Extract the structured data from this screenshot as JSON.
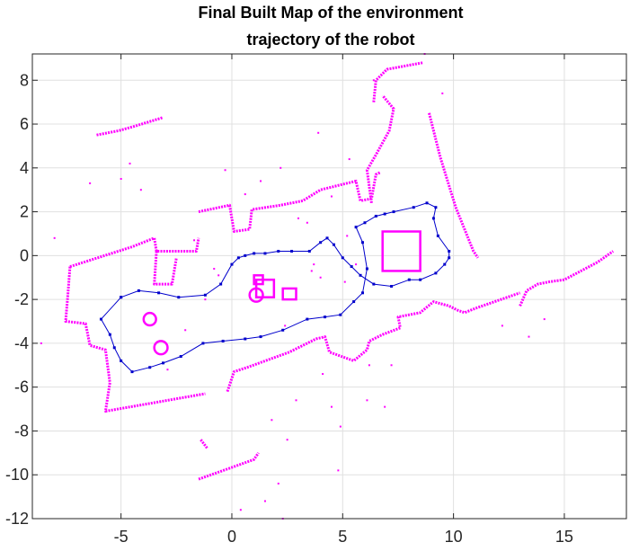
{
  "chart_data": {
    "type": "scatter",
    "title_line1": "Final Built Map of the environment",
    "title_line2": "trajectory of the robot",
    "xlabel": "",
    "ylabel": "",
    "xlim": [
      -9,
      17.8
    ],
    "ylim": [
      -12,
      9.2
    ],
    "xticks": [
      -5,
      0,
      5,
      10,
      15
    ],
    "yticks": [
      8,
      6,
      4,
      2,
      0,
      -2,
      -4,
      -6,
      -8,
      -10,
      -12
    ],
    "grid": true,
    "colors": {
      "map": "#ff00ff",
      "trajectory": "#0000cc",
      "grid": "#e0e0e0",
      "axes": "#262626"
    },
    "map_polylines": [
      [
        [
          -7.3,
          -0.5
        ],
        [
          -4.5,
          0.4
        ],
        [
          -3.5,
          0.8
        ],
        [
          -3.4,
          0.2
        ],
        [
          -1.6,
          0.2
        ],
        [
          -1.5,
          0.8
        ]
      ],
      [
        [
          -3.4,
          0.2
        ],
        [
          -3.5,
          -1.3
        ],
        [
          -2.7,
          -1.3
        ],
        [
          -2.5,
          -0.1
        ]
      ],
      [
        [
          -7.3,
          -0.5
        ],
        [
          -7.4,
          -1.8
        ],
        [
          -7.5,
          -3.0
        ],
        [
          -6.6,
          -3.1
        ],
        [
          -6.4,
          -4.1
        ],
        [
          -5.7,
          -4.3
        ],
        [
          -5.5,
          -5.8
        ],
        [
          -5.7,
          -7.1
        ],
        [
          -1.2,
          -6.3
        ]
      ],
      [
        [
          -1.5,
          2.0
        ],
        [
          -0.1,
          2.3
        ],
        [
          0.1,
          1.1
        ],
        [
          0.8,
          1.2
        ],
        [
          0.9,
          2.1
        ],
        [
          2.2,
          2.3
        ],
        [
          3.2,
          2.5
        ],
        [
          4.0,
          3.0
        ],
        [
          5.6,
          3.4
        ],
        [
          5.8,
          2.5
        ],
        [
          6.3,
          2.6
        ],
        [
          6.5,
          3.7
        ],
        [
          6.7,
          3.8
        ]
      ],
      [
        [
          -0.2,
          -6.2
        ],
        [
          0.1,
          -5.3
        ],
        [
          0.7,
          -5.1
        ],
        [
          2.6,
          -4.4
        ],
        [
          3.8,
          -3.8
        ],
        [
          4.2,
          -3.7
        ],
        [
          4.4,
          -4.4
        ],
        [
          5.5,
          -4.8
        ],
        [
          6.1,
          -4.3
        ],
        [
          6.2,
          -3.9
        ],
        [
          6.8,
          -3.6
        ],
        [
          7.6,
          -3.3
        ],
        [
          7.5,
          -2.8
        ],
        [
          8.5,
          -2.6
        ],
        [
          9.1,
          -2.1
        ],
        [
          9.8,
          -2.3
        ],
        [
          10.2,
          -2.5
        ],
        [
          10.5,
          -2.6
        ],
        [
          11.0,
          -2.4
        ]
      ],
      [
        [
          11.0,
          -2.4
        ],
        [
          13.0,
          -1.7
        ]
      ],
      [
        [
          6.3,
          2.4
        ],
        [
          6.1,
          3.9
        ],
        [
          6.5,
          4.6
        ],
        [
          7.1,
          5.7
        ],
        [
          7.3,
          6.7
        ],
        [
          6.8,
          7.3
        ]
      ],
      [
        [
          6.4,
          7.0
        ],
        [
          6.5,
          8.0
        ],
        [
          7.0,
          8.5
        ],
        [
          8.6,
          8.8
        ]
      ],
      [
        [
          8.9,
          6.5
        ],
        [
          9.4,
          4.5
        ],
        [
          10.1,
          2.2
        ],
        [
          10.9,
          0.2
        ],
        [
          11.1,
          -0.1
        ]
      ],
      [
        [
          13.0,
          -2.3
        ],
        [
          13.3,
          -1.6
        ],
        [
          13.8,
          -1.3
        ],
        [
          14.3,
          -1.2
        ],
        [
          15.0,
          -1.1
        ],
        [
          16.5,
          -0.3
        ],
        [
          17.2,
          0.2
        ]
      ],
      [
        [
          -6.1,
          5.5
        ],
        [
          -5.1,
          5.7
        ],
        [
          -4.4,
          5.9
        ],
        [
          -3.1,
          6.3
        ]
      ],
      [
        [
          -1.4,
          -8.4
        ],
        [
          -1.1,
          -8.8
        ]
      ],
      [
        [
          -1.5,
          -10.2
        ],
        [
          -0.1,
          -9.7
        ],
        [
          1.0,
          -9.3
        ],
        [
          1.2,
          -9.0
        ]
      ]
    ],
    "map_circles": [
      [
        -3.7,
        -2.9,
        0.28
      ],
      [
        -3.2,
        -4.2,
        0.3
      ],
      [
        1.1,
        -1.8,
        0.3
      ]
    ],
    "map_rects": [
      [
        6.8,
        -0.7,
        1.7,
        1.8
      ],
      [
        1.1,
        -1.9,
        0.8,
        0.8
      ],
      [
        2.3,
        -2.0,
        0.6,
        0.5
      ],
      [
        1.0,
        -1.3,
        0.4,
        0.4
      ]
    ],
    "scatter_points": [
      [
        -8.6,
        -4.0
      ],
      [
        -8.0,
        0.8
      ],
      [
        -6.4,
        3.3
      ],
      [
        -5.0,
        3.5
      ],
      [
        -4.6,
        4.2
      ],
      [
        -4.1,
        3.0
      ],
      [
        -2.9,
        -5.2
      ],
      [
        -2.1,
        -3.4
      ],
      [
        -1.2,
        -2.0
      ],
      [
        -0.6,
        -0.9
      ],
      [
        -0.3,
        3.9
      ],
      [
        0.6,
        2.8
      ],
      [
        1.3,
        3.4
      ],
      [
        1.7,
        -1.1
      ],
      [
        2.4,
        -3.2
      ],
      [
        3.0,
        1.7
      ],
      [
        3.6,
        -0.7
      ],
      [
        4.1,
        -5.4
      ],
      [
        4.5,
        -6.9
      ],
      [
        4.9,
        -7.8
      ],
      [
        4.8,
        -9.8
      ],
      [
        5.3,
        4.4
      ],
      [
        3.9,
        5.6
      ],
      [
        5.2,
        0.9
      ],
      [
        5.6,
        -0.4
      ],
      [
        5.1,
        -1.2
      ],
      [
        2.9,
        -6.6
      ],
      [
        1.8,
        -7.5
      ],
      [
        0.4,
        -11.6
      ],
      [
        1.5,
        -11.2
      ],
      [
        2.1,
        -10.4
      ],
      [
        2.3,
        -12.0
      ],
      [
        2.5,
        -8.4
      ],
      [
        6.1,
        -6.6
      ],
      [
        6.9,
        -6.9
      ],
      [
        7.2,
        -5.0
      ],
      [
        6.4,
        8.0
      ],
      [
        9.5,
        7.4
      ],
      [
        8.7,
        9.2
      ],
      [
        12.2,
        -3.2
      ],
      [
        13.4,
        -3.7
      ],
      [
        14.1,
        -2.9
      ],
      [
        4.5,
        2.7
      ],
      [
        3.4,
        1.5
      ],
      [
        -0.8,
        -0.6
      ],
      [
        -1.7,
        0.7
      ],
      [
        6.2,
        -5.0
      ],
      [
        4.0,
        -1.0
      ],
      [
        3.7,
        -0.4
      ],
      [
        2.2,
        4.0
      ]
    ],
    "trajectory": [
      [
        -5.0,
        -1.9
      ],
      [
        -4.2,
        -1.6
      ],
      [
        -3.3,
        -1.7
      ],
      [
        -2.4,
        -1.9
      ],
      [
        -1.2,
        -1.8
      ],
      [
        -0.5,
        -1.3
      ],
      [
        0.0,
        -0.4
      ],
      [
        0.3,
        -0.1
      ],
      [
        0.6,
        0.0
      ],
      [
        1.0,
        0.1
      ],
      [
        1.5,
        0.1
      ],
      [
        2.1,
        0.2
      ],
      [
        2.7,
        0.2
      ],
      [
        3.5,
        0.2
      ],
      [
        4.0,
        0.6
      ],
      [
        4.3,
        0.8
      ],
      [
        4.6,
        0.5
      ],
      [
        5.0,
        -0.1
      ],
      [
        5.4,
        -0.5
      ],
      [
        5.8,
        -0.9
      ],
      [
        6.4,
        -1.3
      ],
      [
        7.2,
        -1.4
      ],
      [
        8.0,
        -1.1
      ],
      [
        8.5,
        -1.1
      ],
      [
        9.2,
        -0.8
      ],
      [
        9.6,
        -0.4
      ],
      [
        9.8,
        -0.1
      ],
      [
        9.8,
        0.2
      ],
      [
        9.3,
        0.9
      ],
      [
        9.1,
        1.7
      ],
      [
        9.2,
        2.2
      ],
      [
        8.8,
        2.4
      ],
      [
        8.2,
        2.2
      ],
      [
        7.3,
        2.0
      ],
      [
        6.9,
        1.9
      ],
      [
        6.5,
        1.8
      ],
      [
        6.0,
        1.5
      ],
      [
        5.6,
        1.3
      ],
      [
        5.9,
        0.6
      ],
      [
        6.1,
        -0.6
      ],
      [
        5.9,
        -1.7
      ],
      [
        5.5,
        -2.1
      ],
      [
        4.9,
        -2.7
      ],
      [
        4.2,
        -2.8
      ],
      [
        3.4,
        -2.9
      ],
      [
        2.3,
        -3.4
      ],
      [
        1.3,
        -3.7
      ],
      [
        0.6,
        -3.8
      ],
      [
        -0.4,
        -3.9
      ],
      [
        -1.3,
        -4.0
      ],
      [
        -2.3,
        -4.6
      ],
      [
        -3.1,
        -4.9
      ],
      [
        -3.7,
        -5.1
      ],
      [
        -4.5,
        -5.3
      ],
      [
        -5.0,
        -4.8
      ],
      [
        -5.3,
        -4.2
      ],
      [
        -5.5,
        -3.6
      ],
      [
        -5.9,
        -2.9
      ],
      [
        -5.0,
        -1.9
      ]
    ]
  }
}
